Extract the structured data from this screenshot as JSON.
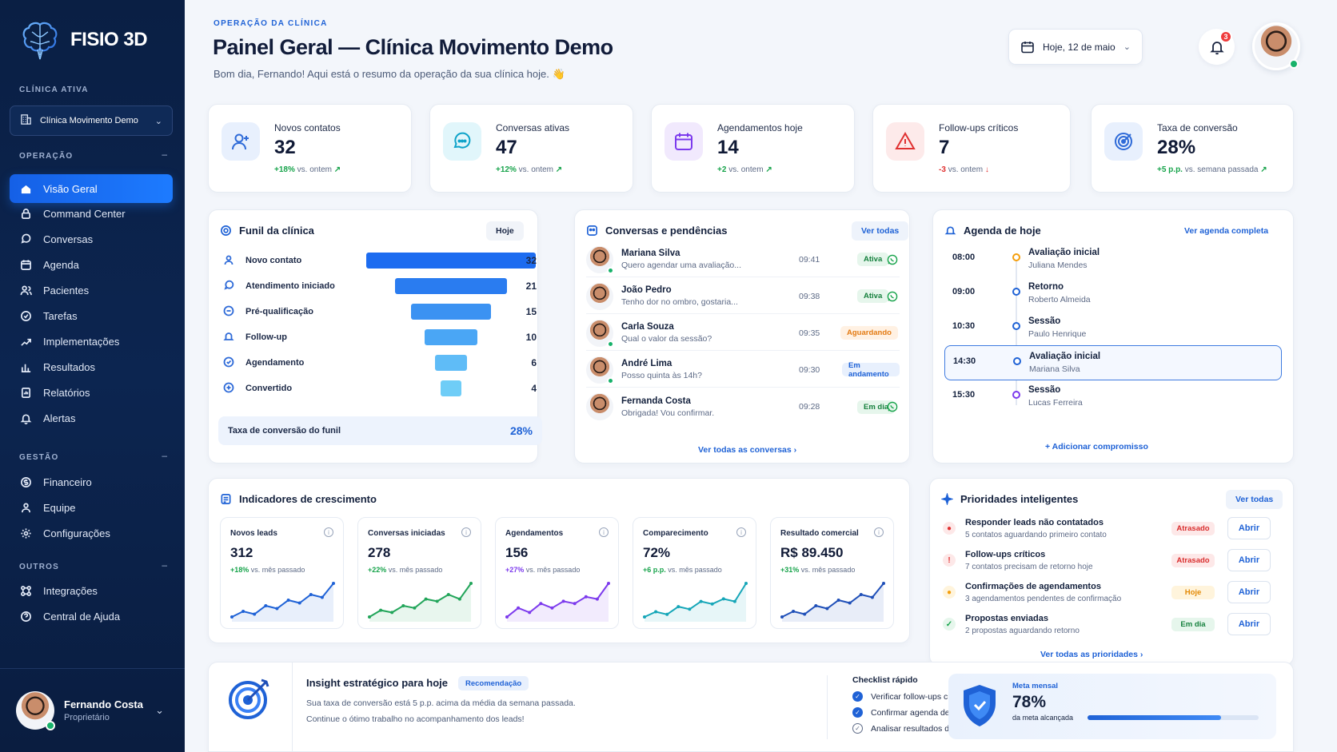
{
  "brand": {
    "name": "FISIO 3D"
  },
  "sidebar": {
    "clinic_section": "CLÍNICA ATIVA",
    "clinic_name": "Clínica Movimento Demo",
    "sections": {
      "operacao": "OPERAÇÃO",
      "gestao": "GESTÃO",
      "outros": "OUTROS"
    },
    "operacao_items": [
      {
        "label": "Visão Geral",
        "icon": "home-icon",
        "active": true
      },
      {
        "label": "Command Center",
        "icon": "lock-icon"
      },
      {
        "label": "Conversas",
        "icon": "chat-icon"
      },
      {
        "label": "Agenda",
        "icon": "calendar-icon"
      },
      {
        "label": "Pacientes",
        "icon": "users-icon"
      },
      {
        "label": "Tarefas",
        "icon": "check-circle-icon"
      },
      {
        "label": "Implementações",
        "icon": "trend-icon"
      },
      {
        "label": "Resultados",
        "icon": "bar-chart-icon"
      },
      {
        "label": "Relatórios",
        "icon": "report-icon"
      },
      {
        "label": "Alertas",
        "icon": "bell-icon"
      }
    ],
    "gestao_items": [
      {
        "label": "Financeiro",
        "icon": "money-icon"
      },
      {
        "label": "Equipe",
        "icon": "team-icon"
      },
      {
        "label": "Configurações",
        "icon": "gear-icon"
      }
    ],
    "outros_items": [
      {
        "label": "Integrações",
        "icon": "integrations-icon"
      },
      {
        "label": "Central de Ajuda",
        "icon": "help-icon"
      }
    ],
    "user": {
      "name": "Fernando Costa",
      "role": "Proprietário"
    }
  },
  "header": {
    "eyebrow": "OPERAÇÃO DA CLÍNICA",
    "title": "Painel Geral — Clínica Movimento Demo",
    "subtitle": "Bom dia, Fernando! Aqui está o resumo da operação da sua clínica hoje. 👋",
    "date_label": "Hoje, 12 de maio",
    "notifications": "3"
  },
  "kpis": [
    {
      "label": "Novos contatos",
      "value": "32",
      "delta": "+18%",
      "delta_text": "vs. ontem",
      "trend": "up",
      "icon": "user-plus-icon",
      "color": "#2f6bd8",
      "bg": "#e8f0fd"
    },
    {
      "label": "Conversas ativas",
      "value": "47",
      "delta": "+12%",
      "delta_text": "vs. ontem",
      "trend": "up",
      "icon": "chat-bubble-icon",
      "color": "#0fa3c9",
      "bg": "#e1f6fb"
    },
    {
      "label": "Agendamentos hoje",
      "value": "14",
      "delta": "+2",
      "delta_text": "vs. ontem",
      "trend": "up",
      "icon": "calendar-icon",
      "color": "#7c3aed",
      "bg": "#f1e9fd"
    },
    {
      "label": "Follow-ups críticos",
      "value": "7",
      "delta": "-3",
      "delta_text": "vs. ontem",
      "trend": "down",
      "icon": "warning-icon",
      "color": "#e03131",
      "bg": "#fdeaea"
    },
    {
      "label": "Taxa de conversão",
      "value": "28%",
      "delta": "+5 p.p.",
      "delta_text": "vs. semana passada",
      "trend": "up",
      "icon": "target-icon",
      "color": "#2f6bd8",
      "bg": "#e8f0fd"
    }
  ],
  "funnel": {
    "title": "Funil da clínica",
    "filter": "Hoje",
    "footer_label": "Taxa de conversão do funil",
    "footer_value": "28%"
  },
  "chart_data": {
    "type": "bar",
    "categories": [
      "Novo contato",
      "Atendimento iniciado",
      "Pré-qualificação",
      "Follow-up",
      "Agendamento",
      "Convertido"
    ],
    "values": [
      32,
      21,
      15,
      10,
      6,
      4
    ],
    "colors": [
      "#1d6cf0",
      "#2a7cf0",
      "#3b92f2",
      "#4aa6f5",
      "#5fbcf7",
      "#6fcdf7"
    ]
  },
  "conversations": {
    "title": "Conversas e pendências",
    "see_all": "Ver todas",
    "footer_link": "Ver todas as conversas",
    "items": [
      {
        "name": "Mariana Silva",
        "msg": "Quero agendar uma avaliação...",
        "time": "09:41",
        "status": "Ativa",
        "status_kind": "green",
        "whatsapp": true,
        "online": true
      },
      {
        "name": "João Pedro",
        "msg": "Tenho dor no ombro, gostaria...",
        "time": "09:38",
        "status": "Ativa",
        "status_kind": "green",
        "whatsapp": true,
        "online": false
      },
      {
        "name": "Carla Souza",
        "msg": "Qual o valor da sessão?",
        "time": "09:35",
        "status": "Aguardando",
        "status_kind": "orange",
        "whatsapp": false,
        "online": true
      },
      {
        "name": "André Lima",
        "msg": "Posso quinta às 14h?",
        "time": "09:30",
        "status": "Em andamento",
        "status_kind": "blue",
        "whatsapp": false,
        "online": true
      },
      {
        "name": "Fernanda Costa",
        "msg": "Obrigada! Vou confirmar.",
        "time": "09:28",
        "status": "Em dia",
        "status_kind": "green",
        "whatsapp": true,
        "online": false
      }
    ]
  },
  "agenda": {
    "title": "Agenda de hoje",
    "see_all": "Ver agenda completa",
    "add": "Adicionar compromisso",
    "items": [
      {
        "time": "08:00",
        "title": "Avaliação inicial",
        "who": "Juliana Mendes",
        "color": "#f59e0b",
        "highlight": false
      },
      {
        "time": "09:00",
        "title": "Retorno",
        "who": "Roberto Almeida",
        "color": "#1f62d6",
        "highlight": false
      },
      {
        "time": "10:30",
        "title": "Sessão",
        "who": "Paulo Henrique",
        "color": "#1f62d6",
        "highlight": false
      },
      {
        "time": "14:30",
        "title": "Avaliação inicial",
        "who": "Mariana Silva",
        "color": "#1f62d6",
        "highlight": true
      },
      {
        "time": "15:30",
        "title": "Sessão",
        "who": "Lucas Ferreira",
        "color": "#7c3aed",
        "highlight": false
      }
    ]
  },
  "growth": {
    "title": "Indicadores de crescimento",
    "cards": [
      {
        "label": "Novos leads",
        "value": "312",
        "delta": "+18%",
        "delta_text": "vs. mês passado",
        "color": "#1f62d6",
        "delta_color": "#16a34a",
        "trend": [
          3,
          4,
          3.5,
          5,
          4.5,
          6,
          5.5,
          7,
          6.5,
          9
        ]
      },
      {
        "label": "Conversas iniciadas",
        "value": "278",
        "delta": "+22%",
        "delta_text": "vs. mês passado",
        "color": "#22a55a",
        "delta_color": "#16a34a",
        "trend": [
          2,
          3.5,
          3,
          4.5,
          4,
          6,
          5.5,
          7,
          6,
          9.5
        ]
      },
      {
        "label": "Agendamentos",
        "value": "156",
        "delta": "+27%",
        "delta_text": "vs. mês passado",
        "color": "#7c3aed",
        "delta_color": "#7c3aed",
        "trend": [
          2,
          4,
          3,
          5,
          4,
          5.5,
          5,
          6.5,
          6,
          9.5
        ]
      },
      {
        "label": "Comparecimento",
        "value": "72%",
        "delta": "+6 p.p.",
        "delta_text": "vs. mês passado",
        "color": "#16a6b8",
        "delta_color": "#16a34a",
        "trend": [
          2,
          3,
          2.5,
          4,
          3.5,
          5,
          4.5,
          5.5,
          5,
          8.5
        ]
      },
      {
        "label": "Resultado comercial",
        "value": "R$ 89.450",
        "delta": "+31%",
        "delta_text": "vs. mês passado",
        "color": "#1f4fb8",
        "delta_color": "#16a34a",
        "trend": [
          3,
          4,
          3.5,
          5,
          4.5,
          6,
          5.5,
          7,
          6.5,
          9
        ]
      }
    ]
  },
  "priorities": {
    "title": "Prioridades inteligentes",
    "see_all": "Ver todas",
    "footer_link": "Ver todas as prioridades",
    "open_label": "Abrir",
    "items": [
      {
        "title": "Responder leads não contatados",
        "sub": "5 contatos aguardando primeiro contato",
        "status": "Atrasado",
        "kind": "red",
        "icon": "clock-icon",
        "icon_color": "#e03131",
        "icon_bg": "#fde8e8",
        "glyph": "●"
      },
      {
        "title": "Follow-ups críticos",
        "sub": "7 contatos precisam de retorno hoje",
        "status": "Atrasado",
        "kind": "red",
        "icon": "alert-icon",
        "icon_color": "#e03131",
        "icon_bg": "#fde8e8",
        "glyph": "!"
      },
      {
        "title": "Confirmações de agendamentos",
        "sub": "3 agendamentos pendentes de confirmação",
        "status": "Hoje",
        "kind": "yellow",
        "icon": "clock-icon",
        "icon_color": "#f59e0b",
        "icon_bg": "#fff4dc",
        "glyph": "●"
      },
      {
        "title": "Propostas enviadas",
        "sub": "2 propostas aguardando retorno",
        "status": "Em dia",
        "kind": "green",
        "icon": "check-icon",
        "icon_color": "#16a34a",
        "icon_bg": "#e6f6ec",
        "glyph": "✓"
      }
    ]
  },
  "insight": {
    "title": "Insight estratégico para hoje",
    "tag": "Recomendação",
    "line1": "Sua taxa de conversão está 5 p.p. acima da média da semana passada.",
    "line2": "Continue o ótimo trabalho no acompanhamento dos leads!",
    "checklist_title": "Checklist rápido",
    "checklist": [
      {
        "label": "Verificar follow-ups críticos",
        "done": true
      },
      {
        "label": "Confirmar agenda de hoje",
        "done": true
      },
      {
        "label": "Analisar resultados da semana",
        "done": false
      }
    ]
  },
  "goal": {
    "label": "Meta mensal",
    "value": "78%",
    "sub": "da meta alcançada",
    "progress": 0.78
  }
}
